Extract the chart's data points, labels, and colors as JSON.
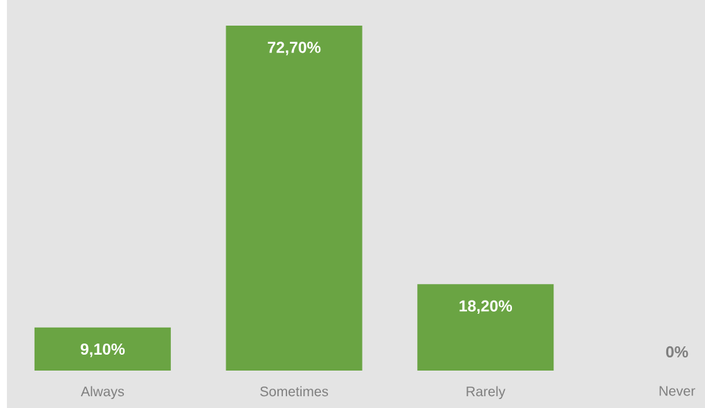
{
  "chart_data": {
    "type": "bar",
    "categories": [
      "Always",
      "Sometimes",
      "Rarely",
      "Never"
    ],
    "values": [
      9.1,
      72.7,
      18.2,
      0
    ],
    "value_labels": [
      "9,10%",
      "72,70%",
      "18,20%",
      "0%"
    ],
    "color": "#6aa443"
  }
}
